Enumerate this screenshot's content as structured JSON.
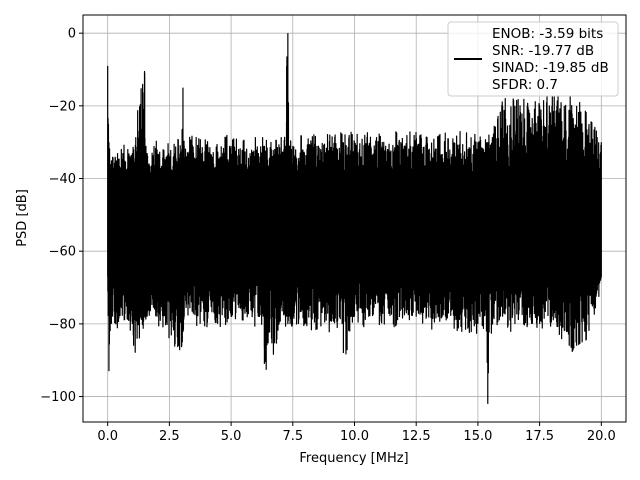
{
  "chart_data": {
    "type": "line",
    "xlabel": "Frequency [MHz]",
    "ylabel": "PSD [dB]",
    "xlim": [
      -1.0,
      21.0
    ],
    "ylim": [
      -107,
      5
    ],
    "x_ticks": [
      0.0,
      2.5,
      5.0,
      7.5,
      10.0,
      12.5,
      15.0,
      17.5,
      20.0
    ],
    "x_tick_labels": [
      "0.0",
      "2.5",
      "5.0",
      "7.5",
      "10.0",
      "12.5",
      "15.0",
      "17.5",
      "20.0"
    ],
    "y_ticks": [
      0,
      -20,
      -40,
      -60,
      -80,
      -100
    ],
    "y_tick_labels": [
      "0",
      "−20",
      "−40",
      "−60",
      "−80",
      "−100"
    ],
    "grid": true,
    "legend_position": "top-right",
    "legend": [
      "ENOB: -3.59 bits",
      "SNR: -19.77 dB",
      "SINAD: -19.85 dB",
      "SFDR: 0.7"
    ],
    "series": [
      {
        "color": "#000000",
        "description_x_range": [
          0.0,
          20.0
        ],
        "x": [
          0.0,
          0.05,
          0.1,
          0.15,
          0.2,
          0.3,
          1.0,
          1.05,
          1.5,
          1.55,
          1.6,
          2.0,
          3.0,
          3.05,
          3.1,
          5.0,
          6.3,
          6.35,
          7.2,
          7.25,
          7.3,
          7.35,
          7.4,
          7.5,
          9.5,
          9.55,
          10.0,
          12.5,
          15.0,
          15.35,
          15.4,
          15.45,
          16.0,
          16.5,
          17.0,
          17.5,
          18.0,
          18.5,
          19.0,
          19.5,
          20.0
        ],
        "upper_envelope": [
          -9,
          -30,
          -36,
          -35,
          -34,
          -34,
          -33,
          -32,
          -11,
          -31,
          -33,
          -32,
          -32,
          -15,
          -31,
          -31,
          -31,
          -31,
          -31,
          -9,
          0,
          -31,
          -31,
          -31,
          -30,
          -30,
          -30,
          -30,
          -30,
          -30,
          -30,
          -30,
          -20,
          -20,
          -20,
          -20,
          -20,
          -20,
          -20,
          -25,
          -30
        ],
        "lower_envelope": [
          -67,
          -93,
          -82,
          -80,
          -78,
          -78,
          -80,
          -86,
          -78,
          -78,
          -78,
          -78,
          -86,
          -80,
          -78,
          -78,
          -78,
          -91,
          -78,
          -78,
          -78,
          -78,
          -78,
          -78,
          -80,
          -88,
          -78,
          -78,
          -80,
          -80,
          -102,
          -80,
          -78,
          -80,
          -78,
          -80,
          -78,
          -82,
          -86,
          -80,
          -67
        ]
      }
    ]
  }
}
